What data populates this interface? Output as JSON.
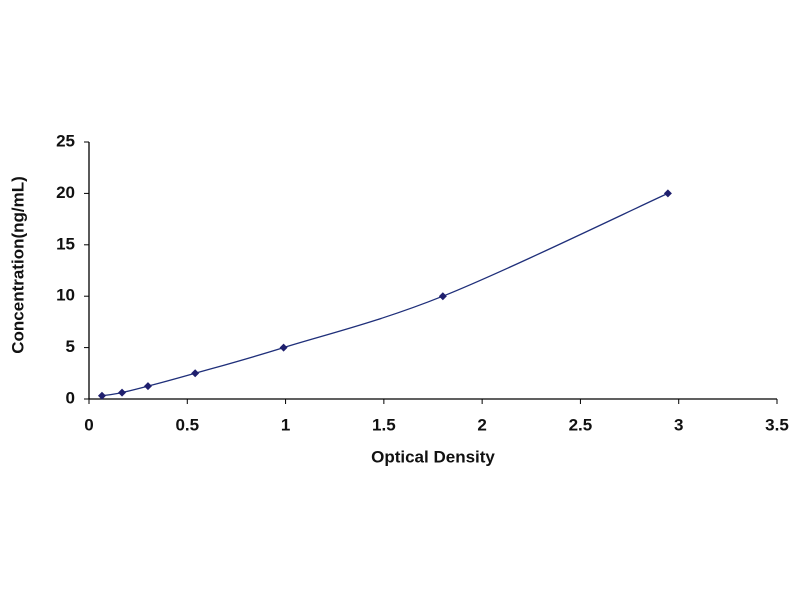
{
  "chart_data": {
    "type": "scatter",
    "x_label": "Optical Density",
    "y_label": "Concentration(ng/mL)",
    "x": [
      0.066,
      0.168,
      0.3,
      0.54,
      0.99,
      1.8,
      2.945
    ],
    "values": [
      0.3125,
      0.625,
      1.25,
      2.5,
      5,
      10,
      20
    ],
    "color": "#1f1f6e",
    "line_color": "#1f2f7a",
    "smooth_line": true,
    "xlim": [
      0,
      3.5
    ],
    "xticks": [
      0,
      0.5,
      1,
      1.5,
      2,
      2.5,
      3,
      3.5
    ],
    "ylim": [
      0,
      25
    ],
    "yticks": [
      0,
      5,
      10,
      15,
      20,
      25
    ],
    "grid": false
  }
}
